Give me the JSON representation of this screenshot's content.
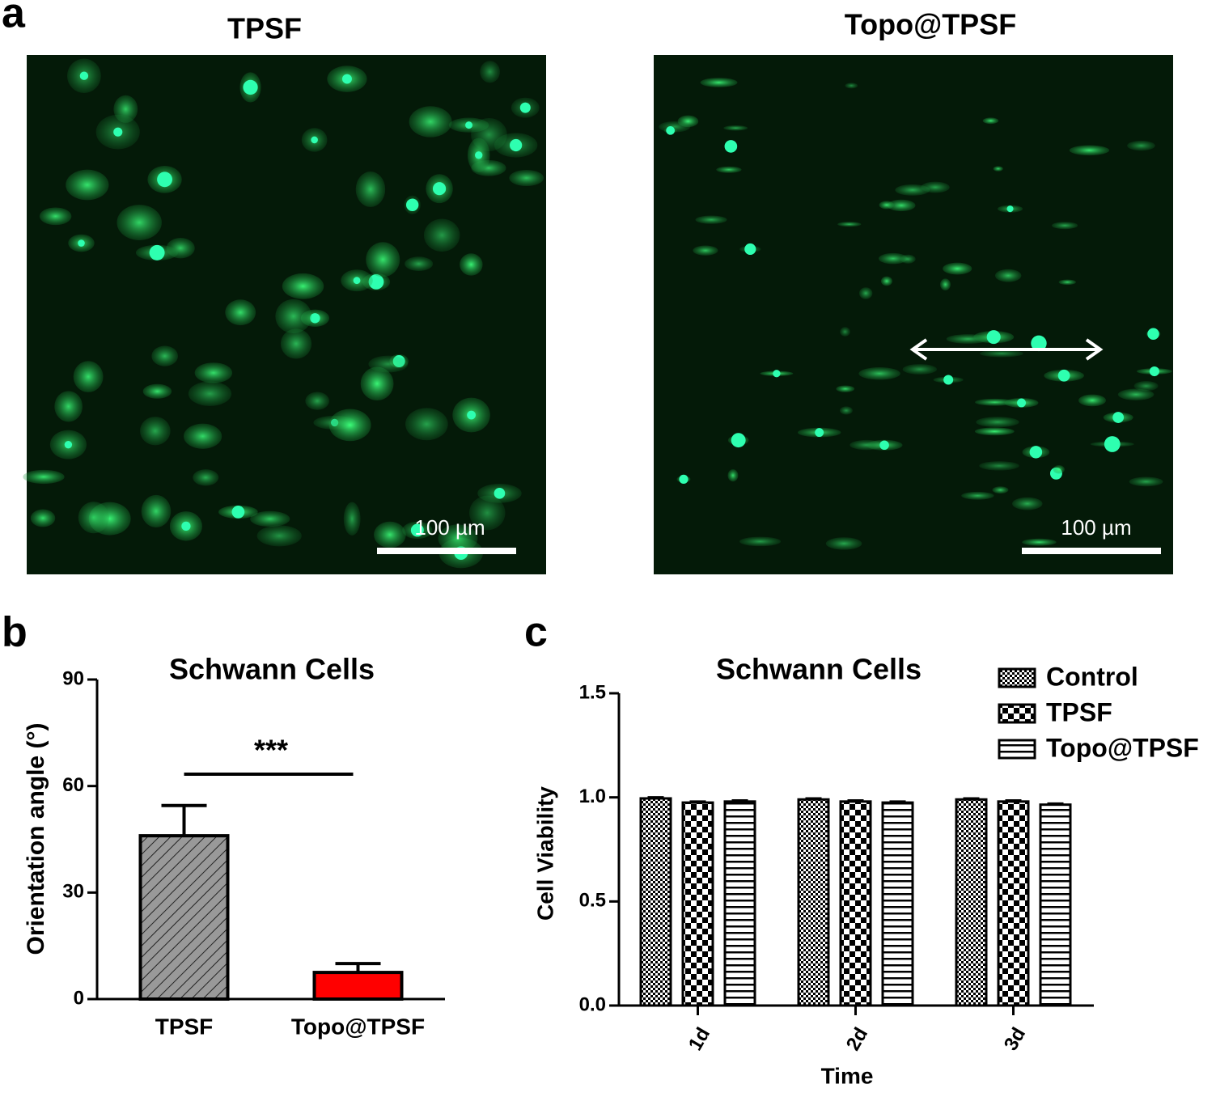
{
  "panel_labels": [
    "a",
    "b",
    "c"
  ],
  "images": [
    {
      "title": "TPSF",
      "scale_bar": "100 µm"
    },
    {
      "title": "Topo@TPSF",
      "scale_bar": "100 µm"
    }
  ],
  "chart_data": [
    {
      "type": "bar",
      "title": "Schwann Cells",
      "y_label": "Orientation angle (°)",
      "categories": [
        "TPSF",
        "Topo@TPSF"
      ],
      "values": [
        46,
        7.5
      ],
      "errors": [
        8.5,
        2.5
      ],
      "colors": [
        "#999999",
        "#ff0000"
      ],
      "patterns": [
        "hatch",
        "solid"
      ],
      "ylim": [
        0,
        90
      ],
      "yticks": [
        0,
        30,
        60,
        90
      ],
      "annotation": "***"
    },
    {
      "type": "grouped_bar",
      "title": "Schwann Cells",
      "x_label": "Time",
      "y_label": "Cell Viability",
      "categories": [
        "1d",
        "2d",
        "3d"
      ],
      "series": [
        {
          "name": "Control",
          "color": "#000000",
          "pattern": "checker-fine",
          "values": [
            0.995,
            0.99,
            0.99
          ],
          "errors": [
            0.005,
            0.005,
            0.005
          ]
        },
        {
          "name": "TPSF",
          "color": "#000000",
          "pattern": "checker",
          "values": [
            0.975,
            0.98,
            0.98
          ],
          "errors": [
            0.005,
            0.005,
            0.005
          ]
        },
        {
          "name": "Topo@TPSF",
          "color": "#000000",
          "pattern": "stripes",
          "values": [
            0.98,
            0.975,
            0.965
          ],
          "errors": [
            0.005,
            0.005,
            0.005
          ]
        }
      ],
      "ylim": [
        0,
        1.5
      ],
      "yticks": [
        {
          "value": 0,
          "label": "0.0"
        },
        {
          "value": 0.5,
          "label": "0.5"
        },
        {
          "value": 1,
          "label": "1.0"
        },
        {
          "value": 1.5,
          "label": "1.5"
        }
      ],
      "legend": "top-right"
    }
  ]
}
